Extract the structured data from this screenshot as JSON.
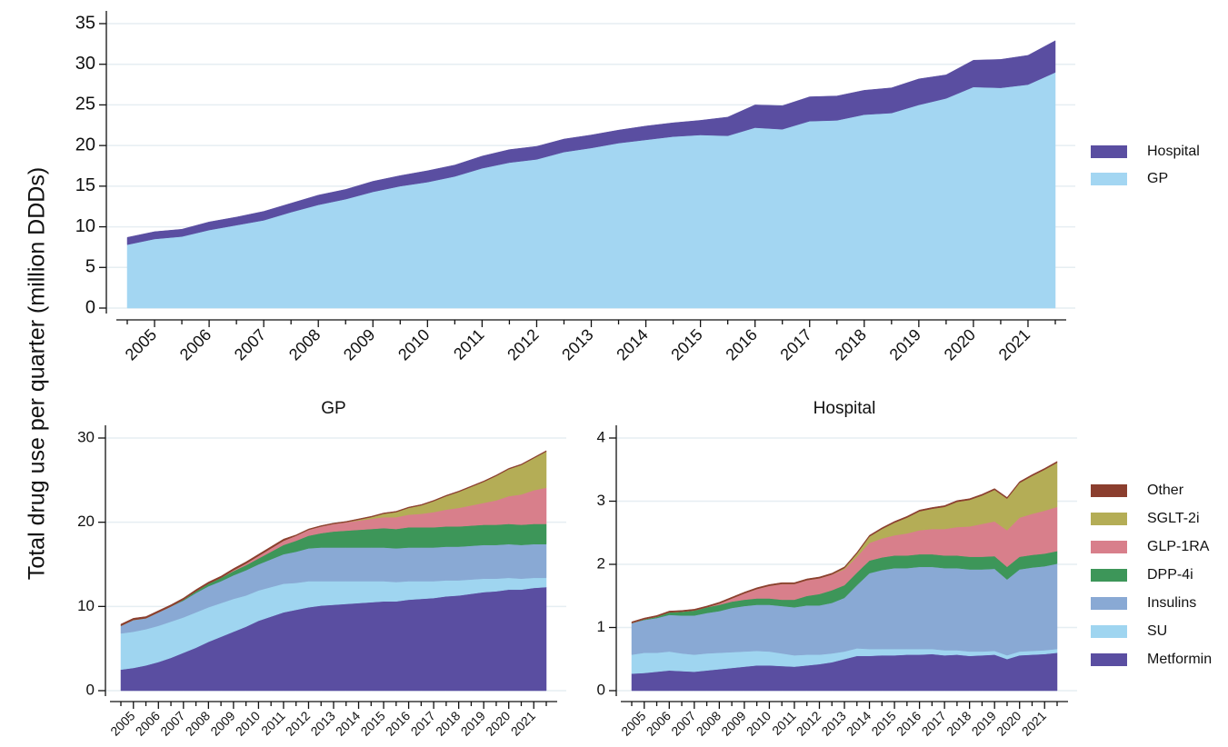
{
  "ylabel": "Total drug use per quarter (million DDDs)",
  "chart_data": [
    {
      "type": "stacked_area",
      "categories": [
        null,
        "2005",
        null,
        "2006",
        null,
        "2007",
        null,
        "2008",
        null,
        "2009",
        null,
        "2010",
        null,
        "2011",
        null,
        "2012",
        null,
        "2013",
        null,
        "2014",
        null,
        "2015",
        null,
        "2016",
        null,
        "2017",
        null,
        "2018",
        null,
        "2019",
        null,
        "2020",
        null,
        "2021",
        null
      ],
      "ylim": [
        0,
        35
      ],
      "yticks": [
        0,
        5,
        10,
        15,
        20,
        25,
        30,
        35
      ],
      "grid": true,
      "series": [
        {
          "name": "GP",
          "color": "#a3d6f2",
          "values": [
            7.8,
            8.5,
            8.8,
            9.6,
            10.2,
            10.8,
            11.8,
            12.7,
            13.4,
            14.3,
            15.0,
            15.5,
            16.2,
            17.2,
            17.9,
            18.3,
            19.2,
            19.7,
            20.3,
            20.7,
            21.1,
            21.3,
            21.2,
            22.2,
            22.0,
            23.0,
            23.1,
            23.8,
            24.0,
            25.0,
            25.8,
            27.2,
            27.1,
            27.5,
            29.0
          ]
        },
        {
          "name": "Hospital",
          "color": "#5a4ea1",
          "values": [
            0.9,
            0.9,
            0.9,
            1.0,
            1.0,
            1.1,
            1.1,
            1.2,
            1.2,
            1.3,
            1.3,
            1.4,
            1.4,
            1.5,
            1.6,
            1.6,
            1.6,
            1.6,
            1.6,
            1.7,
            1.7,
            1.8,
            2.3,
            2.8,
            2.9,
            3.0,
            3.0,
            3.0,
            3.1,
            3.2,
            2.9,
            3.3,
            3.5,
            3.6,
            3.9
          ]
        }
      ]
    },
    {
      "type": "stacked_area",
      "title": "GP",
      "categories": [
        null,
        "2005",
        null,
        "2006",
        null,
        "2007",
        null,
        "2008",
        null,
        "2009",
        null,
        "2010",
        null,
        "2011",
        null,
        "2012",
        null,
        "2013",
        null,
        "2014",
        null,
        "2015",
        null,
        "2016",
        null,
        "2017",
        null,
        "2018",
        null,
        "2019",
        null,
        "2020",
        null,
        "2021",
        null
      ],
      "ylim": [
        0,
        30
      ],
      "yticks": [
        0,
        10,
        20,
        30
      ],
      "grid": true,
      "series": [
        {
          "name": "Metformin",
          "color": "#5a4ea1",
          "values": [
            2.5,
            2.7,
            3.0,
            3.4,
            3.9,
            4.5,
            5.1,
            5.8,
            6.4,
            7.0,
            7.6,
            8.3,
            8.8,
            9.3,
            9.6,
            9.9,
            10.1,
            10.2,
            10.3,
            10.4,
            10.5,
            10.6,
            10.6,
            10.8,
            10.9,
            11.0,
            11.2,
            11.3,
            11.5,
            11.7,
            11.8,
            12.0,
            12.0,
            12.2,
            12.3
          ]
        },
        {
          "name": "SU",
          "color": "#9fd5f0",
          "values": [
            4.3,
            4.3,
            4.3,
            4.3,
            4.3,
            4.2,
            4.2,
            4.1,
            4.0,
            3.9,
            3.7,
            3.6,
            3.5,
            3.4,
            3.2,
            3.1,
            2.9,
            2.8,
            2.7,
            2.6,
            2.5,
            2.4,
            2.3,
            2.2,
            2.1,
            2.0,
            1.9,
            1.8,
            1.7,
            1.6,
            1.5,
            1.4,
            1.3,
            1.2,
            1.1
          ]
        },
        {
          "name": "Insulins",
          "color": "#89a9d4",
          "values": [
            0.9,
            1.4,
            1.3,
            1.6,
            1.8,
            2.0,
            2.3,
            2.5,
            2.6,
            2.8,
            3.0,
            3.1,
            3.3,
            3.5,
            3.7,
            3.9,
            4.0,
            4.0,
            4.0,
            4.0,
            4.0,
            4.0,
            4.0,
            4.0,
            4.0,
            4.0,
            4.0,
            4.0,
            4.0,
            4.0,
            4.0,
            4.0,
            4.0,
            4.0,
            4.0
          ]
        },
        {
          "name": "DPP-4i",
          "color": "#3d9659",
          "values": [
            0,
            0,
            0,
            0,
            0,
            0.1,
            0.2,
            0.3,
            0.4,
            0.5,
            0.6,
            0.7,
            0.9,
            1.1,
            1.3,
            1.5,
            1.7,
            1.9,
            2.0,
            2.1,
            2.2,
            2.3,
            2.3,
            2.4,
            2.4,
            2.4,
            2.4,
            2.4,
            2.4,
            2.4,
            2.4,
            2.4,
            2.4,
            2.4,
            2.4
          ]
        },
        {
          "name": "GLP-1RA",
          "color": "#d87f8b",
          "values": [
            0,
            0,
            0,
            0,
            0,
            0,
            0,
            0,
            0,
            0.1,
            0.2,
            0.3,
            0.4,
            0.5,
            0.6,
            0.7,
            0.8,
            0.9,
            1.0,
            1.1,
            1.2,
            1.3,
            1.4,
            1.5,
            1.6,
            1.8,
            2.0,
            2.2,
            2.4,
            2.6,
            2.9,
            3.3,
            3.6,
            4.0,
            4.3
          ]
        },
        {
          "name": "SGLT-2i",
          "color": "#b4ad56",
          "values": [
            0,
            0,
            0,
            0,
            0,
            0,
            0,
            0,
            0,
            0,
            0,
            0,
            0,
            0,
            0,
            0,
            0,
            0,
            0,
            0.1,
            0.2,
            0.4,
            0.6,
            0.8,
            1.0,
            1.3,
            1.6,
            1.9,
            2.2,
            2.5,
            2.9,
            3.2,
            3.5,
            3.8,
            4.3
          ]
        },
        {
          "name": "Other",
          "color": "#8b3e2e",
          "values": [
            0.2,
            0.2,
            0.2,
            0.2,
            0.2,
            0.2,
            0.2,
            0.2,
            0.2,
            0.2,
            0.2,
            0.2,
            0.2,
            0.2,
            0.1,
            0.1,
            0.1,
            0.1,
            0.1,
            0.1,
            0.1,
            0.1,
            0.1,
            0.1,
            0.1,
            0.1,
            0.1,
            0.1,
            0.1,
            0.1,
            0.1,
            0.1,
            0.1,
            0.1,
            0.1
          ]
        }
      ]
    },
    {
      "type": "stacked_area",
      "title": "Hospital",
      "categories": [
        null,
        "2005",
        null,
        "2006",
        null,
        "2007",
        null,
        "2008",
        null,
        "2009",
        null,
        "2010",
        null,
        "2011",
        null,
        "2012",
        null,
        "2013",
        null,
        "2014",
        null,
        "2015",
        null,
        "2016",
        null,
        "2017",
        null,
        "2018",
        null,
        "2019",
        null,
        "2020",
        null,
        "2021",
        null
      ],
      "ylim": [
        0,
        4
      ],
      "yticks": [
        0,
        1,
        2,
        3,
        4
      ],
      "grid": true,
      "series": [
        {
          "name": "Metformin",
          "color": "#5a4ea1",
          "values": [
            0.27,
            0.28,
            0.3,
            0.32,
            0.31,
            0.3,
            0.32,
            0.34,
            0.36,
            0.38,
            0.4,
            0.4,
            0.39,
            0.38,
            0.4,
            0.42,
            0.45,
            0.5,
            0.55,
            0.55,
            0.56,
            0.56,
            0.57,
            0.57,
            0.58,
            0.56,
            0.57,
            0.55,
            0.56,
            0.57,
            0.5,
            0.56,
            0.57,
            0.58,
            0.6
          ]
        },
        {
          "name": "SU",
          "color": "#9fd5f0",
          "values": [
            0.3,
            0.32,
            0.3,
            0.3,
            0.28,
            0.27,
            0.27,
            0.26,
            0.25,
            0.24,
            0.23,
            0.22,
            0.2,
            0.18,
            0.17,
            0.15,
            0.14,
            0.12,
            0.12,
            0.11,
            0.1,
            0.1,
            0.09,
            0.09,
            0.08,
            0.08,
            0.07,
            0.07,
            0.06,
            0.06,
            0.06,
            0.06,
            0.06,
            0.06,
            0.06
          ]
        },
        {
          "name": "Insulins",
          "color": "#89a9d4",
          "values": [
            0.5,
            0.52,
            0.55,
            0.58,
            0.6,
            0.62,
            0.64,
            0.66,
            0.7,
            0.72,
            0.73,
            0.74,
            0.75,
            0.76,
            0.78,
            0.78,
            0.8,
            0.85,
            1.0,
            1.2,
            1.25,
            1.28,
            1.28,
            1.3,
            1.3,
            1.3,
            1.3,
            1.3,
            1.3,
            1.3,
            1.2,
            1.3,
            1.32,
            1.33,
            1.35
          ]
        },
        {
          "name": "DPP-4i",
          "color": "#3d9659",
          "values": [
            0,
            0.01,
            0.02,
            0.04,
            0.06,
            0.08,
            0.09,
            0.1,
            0.1,
            0.1,
            0.1,
            0.1,
            0.1,
            0.12,
            0.15,
            0.18,
            0.2,
            0.2,
            0.2,
            0.2,
            0.2,
            0.2,
            0.2,
            0.2,
            0.2,
            0.2,
            0.2,
            0.2,
            0.2,
            0.2,
            0.2,
            0.2,
            0.2,
            0.2,
            0.2
          ]
        },
        {
          "name": "GLP-1RA",
          "color": "#d87f8b",
          "values": [
            0,
            0,
            0,
            0,
            0,
            0,
            0,
            0.02,
            0.05,
            0.1,
            0.15,
            0.2,
            0.25,
            0.25,
            0.25,
            0.25,
            0.25,
            0.25,
            0.25,
            0.28,
            0.3,
            0.32,
            0.35,
            0.38,
            0.4,
            0.42,
            0.45,
            0.48,
            0.52,
            0.55,
            0.58,
            0.62,
            0.65,
            0.68,
            0.7
          ]
        },
        {
          "name": "SGLT-2i",
          "color": "#b4ad56",
          "values": [
            0,
            0,
            0,
            0,
            0,
            0,
            0,
            0,
            0,
            0,
            0,
            0,
            0,
            0,
            0,
            0,
            0,
            0.02,
            0.05,
            0.1,
            0.15,
            0.2,
            0.25,
            0.3,
            0.32,
            0.35,
            0.4,
            0.42,
            0.45,
            0.5,
            0.5,
            0.55,
            0.6,
            0.65,
            0.7
          ]
        },
        {
          "name": "Other",
          "color": "#8b3e2e",
          "values": [
            0.02,
            0.02,
            0.02,
            0.02,
            0.02,
            0.02,
            0.02,
            0.02,
            0.02,
            0.02,
            0.02,
            0.02,
            0.02,
            0.02,
            0.02,
            0.02,
            0.02,
            0.02,
            0.02,
            0.02,
            0.02,
            0.02,
            0.02,
            0.02,
            0.02,
            0.02,
            0.02,
            0.02,
            0.02,
            0.02,
            0.02,
            0.02,
            0.02,
            0.02,
            0.02
          ]
        }
      ]
    }
  ]
}
